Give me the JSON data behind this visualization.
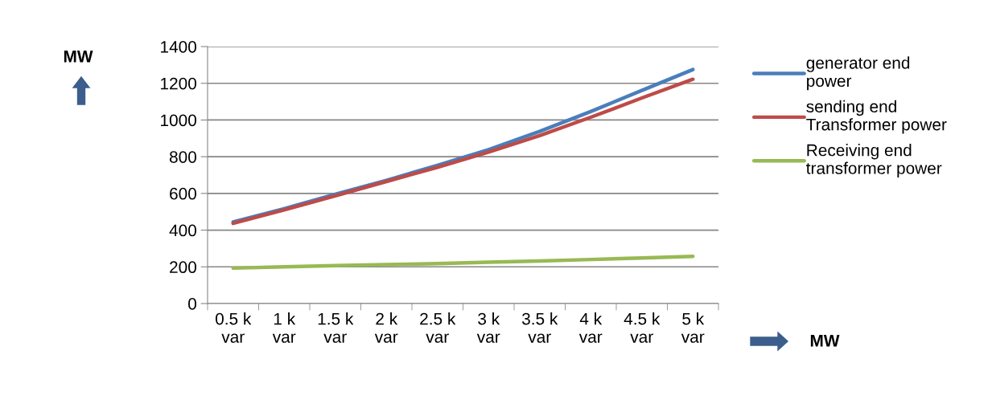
{
  "chart_data": {
    "type": "line",
    "ylabel": "MW",
    "annotations": [
      "MW"
    ],
    "categories": [
      "0.5 k\nvar",
      "1 k\nvar",
      "1.5 k\nvar",
      "2 k\nvar",
      "2.5 k\nvar",
      "3 k\nvar",
      "3.5 k\nvar",
      "4 k\nvar",
      "4.5 k\nvar",
      "5 k\nvar"
    ],
    "series": [
      {
        "name": "generator end\npower",
        "color": "#4a7ebb",
        "values": [
          444,
          517,
          595,
          671,
          753,
          838,
          938,
          1046,
          1161,
          1275
        ]
      },
      {
        "name": "sending end\nTransformer power",
        "color": "#be4b48",
        "values": [
          437,
          510,
          587,
          665,
          742,
          825,
          915,
          1015,
          1120,
          1222
        ]
      },
      {
        "name": "Receiving end\ntransformer power",
        "color": "#98b954",
        "values": [
          193,
          200,
          207,
          212,
          218,
          225,
          232,
          240,
          248,
          257
        ]
      }
    ],
    "ylim": [
      0,
      1400
    ],
    "yticks": [
      0,
      200,
      400,
      600,
      800,
      1000,
      1200,
      1400
    ],
    "grid": "y",
    "legend": "right",
    "marker": "none",
    "line_style": "solid"
  }
}
